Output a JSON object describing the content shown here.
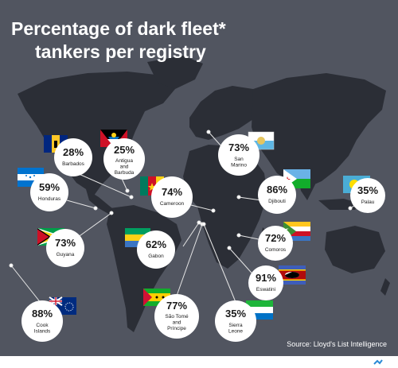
{
  "chart_data": {
    "type": "map-annotations",
    "title_line1": "Percentage of dark fleet*",
    "title_line2": "tankers per registry",
    "source": "Source: Lloyd's List Intelligence",
    "unit": "%",
    "registries": [
      {
        "name": "Barbados",
        "name_lines": [
          "Barbados"
        ],
        "percent": 28,
        "flag": "barbados-flag"
      },
      {
        "name": "Antigua and Barbuda",
        "name_lines": [
          "Antigua",
          "and",
          "Barbuda"
        ],
        "percent": 25,
        "flag": "antigua-barbuda-flag"
      },
      {
        "name": "San Marino",
        "name_lines": [
          "San",
          "Marino"
        ],
        "percent": 73,
        "flag": "san-marino-flag"
      },
      {
        "name": "Honduras",
        "name_lines": [
          "Honduras"
        ],
        "percent": 59,
        "flag": "honduras-flag"
      },
      {
        "name": "Cameroon",
        "name_lines": [
          "Cameroon"
        ],
        "percent": 74,
        "flag": "cameroon-flag"
      },
      {
        "name": "Djibouti",
        "name_lines": [
          "Djibouti"
        ],
        "percent": 86,
        "flag": "djibouti-flag"
      },
      {
        "name": "Palau",
        "name_lines": [
          "Palau"
        ],
        "percent": 35,
        "flag": "palau-flag"
      },
      {
        "name": "Guyana",
        "name_lines": [
          "Guyana"
        ],
        "percent": 73,
        "flag": "guyana-flag"
      },
      {
        "name": "Gabon",
        "name_lines": [
          "Gabon"
        ],
        "percent": 62,
        "flag": "gabon-flag"
      },
      {
        "name": "Comoros",
        "name_lines": [
          "Comoros"
        ],
        "percent": 72,
        "flag": "comoros-flag"
      },
      {
        "name": "Eswatini",
        "name_lines": [
          "Eswatini"
        ],
        "percent": 91,
        "flag": "eswatini-flag"
      },
      {
        "name": "Cook Islands",
        "name_lines": [
          "Cook",
          "Islands"
        ],
        "percent": 88,
        "flag": "cook-islands-flag"
      },
      {
        "name": "São Tomé and Príncipe",
        "name_lines": [
          "São Tomé",
          "and",
          "Príncipe"
        ],
        "percent": 77,
        "flag": "sao-tome-principe-flag"
      },
      {
        "name": "Sierra Leone",
        "name_lines": [
          "Sierra",
          "Leone"
        ],
        "percent": 35,
        "flag": "sierra-leone-flag"
      }
    ]
  },
  "colors": {
    "background": "#515560",
    "land": "#2b2e36",
    "bubble": "#ffffff",
    "text": "#1a1a1a",
    "leader": "#e6e6e6"
  }
}
